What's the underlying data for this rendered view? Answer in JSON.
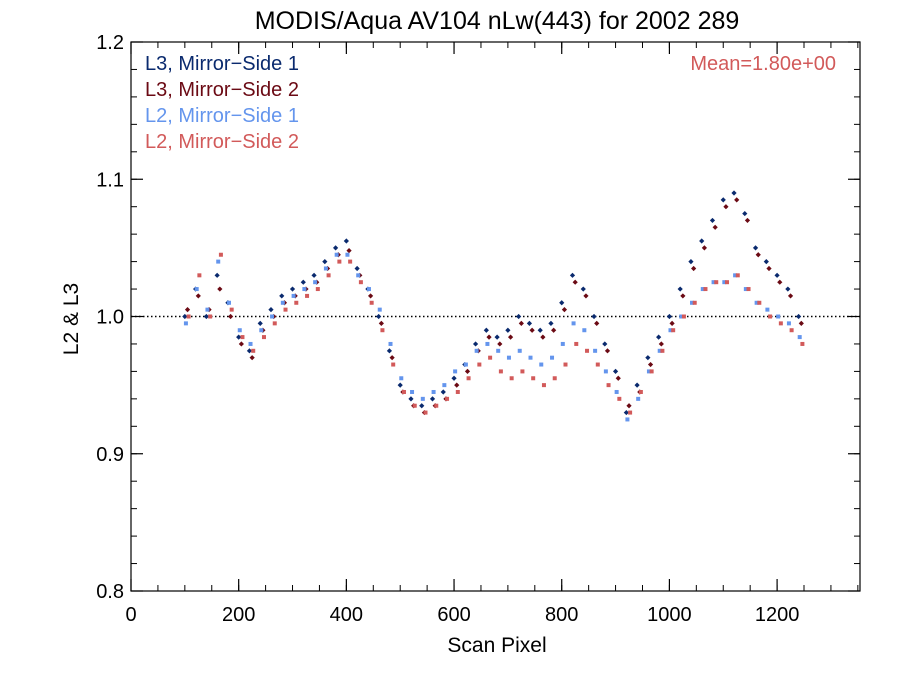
{
  "chart_data": {
    "type": "scatter",
    "title": "MODIS/Aqua AV104 nLw(443) for 2002 289",
    "xlabel": "Scan Pixel",
    "ylabel": "L2 & L3",
    "xlim": [
      0,
      1354
    ],
    "ylim": [
      0.8,
      1.2
    ],
    "x_ticks": [
      0,
      200,
      400,
      600,
      800,
      1000,
      1200
    ],
    "x_tick_labels": [
      "0",
      "200",
      "400",
      "600",
      "800",
      "1000",
      "1200"
    ],
    "y_ticks": [
      0.8,
      0.9,
      1.0,
      1.1,
      1.2
    ],
    "y_tick_labels": [
      "0.8",
      "0.9",
      "1.0",
      "1.1",
      "1.2"
    ],
    "x_minor_step": 50,
    "y_minor_step": 0.02,
    "reference_line": 1.0,
    "legend_position": "top-left",
    "annotation": {
      "text": "Mean=1.80e+00",
      "color": "#d25a5a",
      "position": "top-right"
    },
    "series": [
      {
        "name": "L3, Mirror−Side 1",
        "color": "#0a2a6e",
        "marker": "diamond",
        "x": [
          100,
          120,
          140,
          160,
          180,
          200,
          220,
          240,
          260,
          280,
          300,
          320,
          340,
          360,
          380,
          400,
          420,
          440,
          460,
          480,
          500,
          520,
          540,
          560,
          580,
          600,
          620,
          640,
          660,
          680,
          700,
          720,
          740,
          760,
          780,
          800,
          820,
          840,
          860,
          880,
          900,
          920,
          940,
          960,
          980,
          1000,
          1020,
          1040,
          1060,
          1080,
          1100,
          1120,
          1140,
          1160,
          1180,
          1200,
          1220,
          1240
        ],
        "values": [
          1.0,
          1.02,
          1.0,
          1.03,
          1.01,
          0.985,
          0.975,
          0.995,
          1.005,
          1.015,
          1.02,
          1.025,
          1.03,
          1.04,
          1.05,
          1.055,
          1.035,
          1.02,
          1.0,
          0.975,
          0.95,
          0.94,
          0.935,
          0.94,
          0.945,
          0.955,
          0.965,
          0.98,
          0.99,
          0.985,
          0.99,
          1.0,
          0.995,
          0.99,
          0.995,
          1.01,
          1.03,
          1.02,
          1.0,
          0.98,
          0.96,
          0.93,
          0.95,
          0.97,
          0.985,
          1.0,
          1.02,
          1.04,
          1.055,
          1.07,
          1.085,
          1.09,
          1.075,
          1.05,
          1.04,
          1.03,
          1.02,
          1.0
        ]
      },
      {
        "name": "L3, Mirror−Side 2",
        "color": "#6b0a14",
        "marker": "diamond",
        "x": [
          105,
          125,
          145,
          165,
          185,
          205,
          225,
          245,
          265,
          285,
          305,
          325,
          345,
          365,
          385,
          405,
          425,
          445,
          465,
          485,
          505,
          525,
          545,
          565,
          585,
          605,
          625,
          645,
          665,
          685,
          705,
          725,
          745,
          765,
          785,
          805,
          825,
          845,
          865,
          885,
          905,
          925,
          945,
          965,
          985,
          1005,
          1025,
          1045,
          1065,
          1085,
          1105,
          1125,
          1145,
          1165,
          1185,
          1205,
          1225,
          1245
        ],
        "values": [
          1.005,
          1.015,
          1.005,
          1.02,
          1.0,
          0.98,
          0.97,
          0.99,
          1.0,
          1.01,
          1.015,
          1.02,
          1.025,
          1.035,
          1.045,
          1.048,
          1.03,
          1.015,
          0.995,
          0.97,
          0.945,
          0.935,
          0.93,
          0.935,
          0.94,
          0.95,
          0.96,
          0.975,
          0.985,
          0.98,
          0.985,
          0.995,
          0.99,
          0.985,
          0.99,
          1.005,
          1.025,
          1.015,
          0.995,
          0.975,
          0.955,
          0.935,
          0.945,
          0.965,
          0.98,
          0.995,
          1.015,
          1.035,
          1.05,
          1.065,
          1.08,
          1.085,
          1.07,
          1.045,
          1.035,
          1.025,
          1.015,
          0.995
        ]
      },
      {
        "name": "L2, Mirror−Side 1",
        "color": "#6495ed",
        "marker": "square",
        "x": [
          102,
          122,
          142,
          162,
          182,
          202,
          222,
          242,
          262,
          282,
          302,
          322,
          342,
          362,
          382,
          402,
          422,
          442,
          462,
          482,
          502,
          522,
          542,
          562,
          582,
          602,
          622,
          642,
          662,
          682,
          702,
          722,
          742,
          762,
          782,
          802,
          822,
          842,
          862,
          882,
          902,
          922,
          942,
          962,
          982,
          1002,
          1022,
          1042,
          1062,
          1082,
          1102,
          1122,
          1142,
          1162,
          1182,
          1202,
          1222,
          1242
        ],
        "values": [
          0.995,
          1.02,
          1.005,
          1.04,
          1.01,
          0.99,
          0.98,
          0.99,
          1.0,
          1.01,
          1.015,
          1.02,
          1.025,
          1.035,
          1.045,
          1.045,
          1.03,
          1.02,
          1.005,
          0.98,
          0.955,
          0.945,
          0.94,
          0.945,
          0.95,
          0.96,
          0.965,
          0.975,
          0.98,
          0.975,
          0.97,
          0.975,
          0.97,
          0.965,
          0.97,
          0.98,
          0.995,
          0.99,
          0.975,
          0.96,
          0.945,
          0.925,
          0.94,
          0.96,
          0.975,
          0.99,
          1.0,
          1.01,
          1.02,
          1.025,
          1.025,
          1.03,
          1.02,
          1.01,
          1.005,
          1.0,
          0.995,
          0.985
        ]
      },
      {
        "name": "L2, Mirror−Side 2",
        "color": "#d25a5a",
        "marker": "square",
        "x": [
          107,
          127,
          147,
          167,
          187,
          207,
          227,
          247,
          267,
          287,
          307,
          327,
          347,
          367,
          387,
          407,
          427,
          447,
          467,
          487,
          507,
          527,
          547,
          567,
          587,
          607,
          627,
          647,
          667,
          687,
          707,
          727,
          747,
          767,
          787,
          807,
          827,
          847,
          867,
          887,
          907,
          927,
          947,
          967,
          987,
          1007,
          1027,
          1047,
          1067,
          1087,
          1107,
          1127,
          1147,
          1167,
          1187,
          1207,
          1227,
          1247
        ],
        "values": [
          1.0,
          1.03,
          1.0,
          1.045,
          1.005,
          0.985,
          0.975,
          0.985,
          0.995,
          1.005,
          1.01,
          1.015,
          1.02,
          1.03,
          1.04,
          1.04,
          1.025,
          1.01,
          0.99,
          0.965,
          0.945,
          0.935,
          0.93,
          0.935,
          0.94,
          0.945,
          0.955,
          0.965,
          0.97,
          0.96,
          0.955,
          0.96,
          0.955,
          0.95,
          0.955,
          0.965,
          0.98,
          0.975,
          0.965,
          0.95,
          0.94,
          0.93,
          0.945,
          0.96,
          0.975,
          0.99,
          1.0,
          1.01,
          1.02,
          1.025,
          1.025,
          1.03,
          1.02,
          1.01,
          1.0,
          0.995,
          0.99,
          0.98
        ]
      }
    ]
  }
}
